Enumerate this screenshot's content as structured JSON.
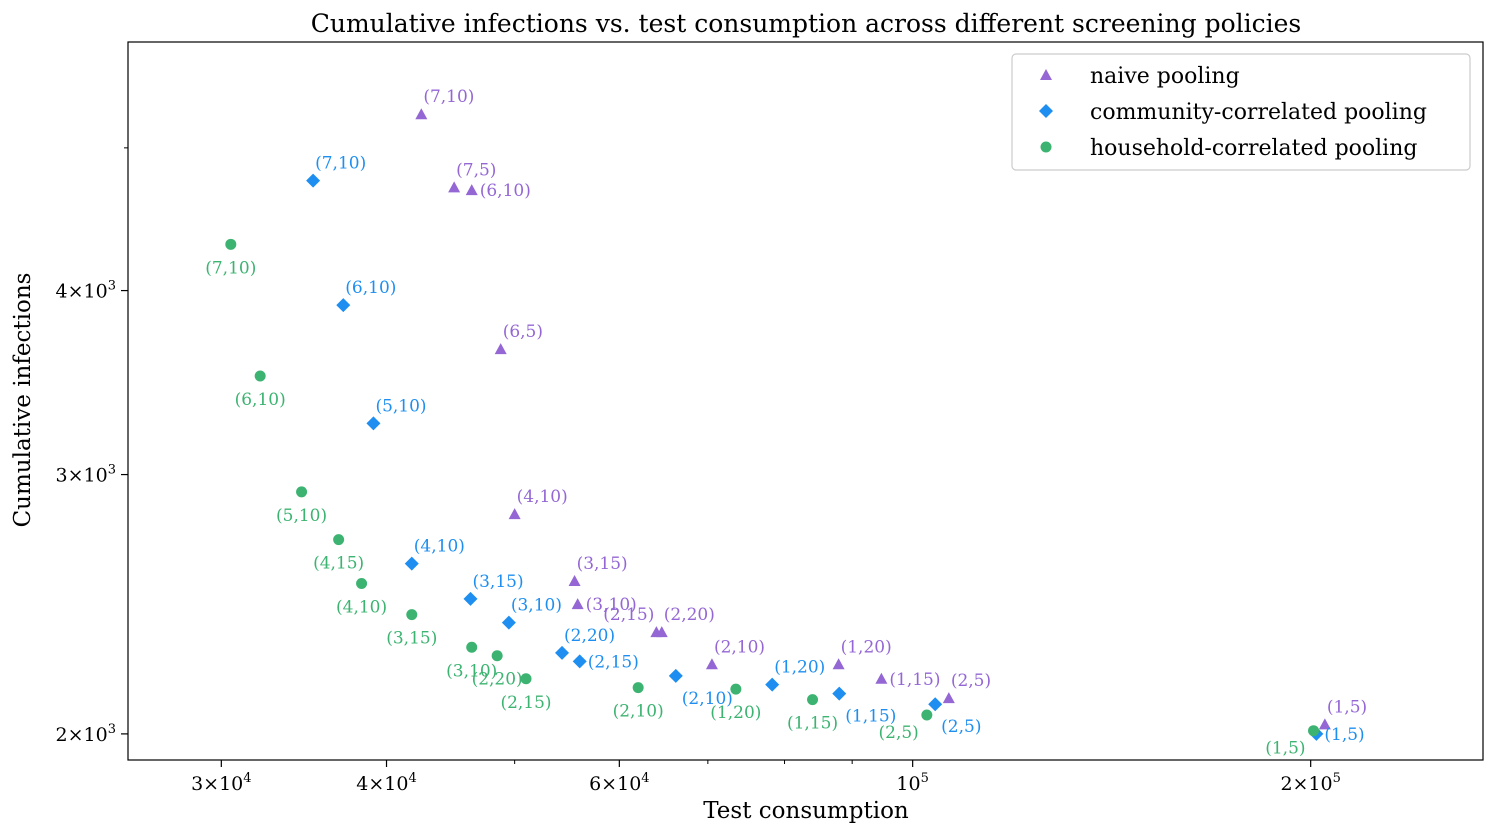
{
  "colors": {
    "naive": "#9467d4",
    "community": "#1e8ff0",
    "household": "#3cb371"
  },
  "chart_data": {
    "type": "scatter",
    "title": "Cumulative infections vs. test consumption across different screening policies",
    "xlabel": "Test consumption",
    "ylabel": "Cumulative infections",
    "xscale": "log",
    "yscale": "log",
    "xlim": [
      25500,
      270000
    ],
    "ylim": [
      1920,
      5900
    ],
    "grid": false,
    "legend_position": "top-right",
    "x_ticks": [
      {
        "value": 30000,
        "mant": "3",
        "times": "×10",
        "exp": "4"
      },
      {
        "value": 40000,
        "mant": "4",
        "times": "×10",
        "exp": "4"
      },
      {
        "value": 60000,
        "mant": "6",
        "times": "×10",
        "exp": "4"
      },
      {
        "value": 100000,
        "mant": "",
        "times": "10",
        "exp": "5"
      },
      {
        "value": 200000,
        "mant": "2",
        "times": "×10",
        "exp": "5"
      }
    ],
    "x_minor_ticks": [
      50000,
      70000,
      80000,
      90000
    ],
    "y_ticks": [
      {
        "value": 2000,
        "mant": "2",
        "times": "×10",
        "exp": "3"
      },
      {
        "value": 3000,
        "mant": "3",
        "times": "×10",
        "exp": "3"
      },
      {
        "value": 4000,
        "mant": "4",
        "times": "×10",
        "exp": "3"
      }
    ],
    "y_minor_ticks": [
      5000
    ],
    "series": [
      {
        "key": "naive",
        "name": "naive pooling",
        "marker": "triangle",
        "points": [
          {
            "x": 42500,
            "y": 5270,
            "label": "(7,10)",
            "pos": "above-right"
          },
          {
            "x": 45000,
            "y": 4700,
            "label": "(7,5)",
            "pos": "above-right"
          },
          {
            "x": 46400,
            "y": 4680,
            "label": "(6,10)",
            "pos": "right"
          },
          {
            "x": 48800,
            "y": 3650,
            "label": "(6,5)",
            "pos": "above-right"
          },
          {
            "x": 50000,
            "y": 2820,
            "label": "(4,10)",
            "pos": "above-right"
          },
          {
            "x": 55500,
            "y": 2540,
            "label": "(3,15)",
            "pos": "above-right"
          },
          {
            "x": 55800,
            "y": 2450,
            "label": "(3,10)",
            "pos": "right"
          },
          {
            "x": 64000,
            "y": 2345,
            "label": "(2,15)",
            "pos": "above-left"
          },
          {
            "x": 64600,
            "y": 2345,
            "label": "(2,20)",
            "pos": "above-right"
          },
          {
            "x": 70500,
            "y": 2230,
            "label": "(2,10)",
            "pos": "above-right"
          },
          {
            "x": 87900,
            "y": 2230,
            "label": "(1,20)",
            "pos": "above-right"
          },
          {
            "x": 94700,
            "y": 2180,
            "label": "(1,15)",
            "pos": "right"
          },
          {
            "x": 106500,
            "y": 2115,
            "label": "(2,5)",
            "pos": "above-right"
          },
          {
            "x": 205000,
            "y": 2030,
            "label": "(1,5)",
            "pos": "above-right"
          }
        ]
      },
      {
        "key": "community",
        "name": "community-correlated pooling",
        "marker": "diamond",
        "points": [
          {
            "x": 35200,
            "y": 4750,
            "label": "(7,10)",
            "pos": "above-right"
          },
          {
            "x": 37100,
            "y": 3910,
            "label": "(6,10)",
            "pos": "above-right"
          },
          {
            "x": 39100,
            "y": 3250,
            "label": "(5,10)",
            "pos": "above-right"
          },
          {
            "x": 41800,
            "y": 2610,
            "label": "(4,10)",
            "pos": "above-right"
          },
          {
            "x": 46300,
            "y": 2470,
            "label": "(3,15)",
            "pos": "above-right"
          },
          {
            "x": 49500,
            "y": 2380,
            "label": "(3,10)",
            "pos": "above-right"
          },
          {
            "x": 54300,
            "y": 2270,
            "label": "(2,20)",
            "pos": "above-right"
          },
          {
            "x": 56000,
            "y": 2240,
            "label": "(2,15)",
            "pos": "right"
          },
          {
            "x": 66200,
            "y": 2190,
            "label": "(2,10)",
            "pos": "below-right"
          },
          {
            "x": 78300,
            "y": 2160,
            "label": "(1,20)",
            "pos": "above-right"
          },
          {
            "x": 88000,
            "y": 2130,
            "label": "(1,15)",
            "pos": "below-right"
          },
          {
            "x": 104000,
            "y": 2095,
            "label": "(2,5)",
            "pos": "below-right"
          },
          {
            "x": 202000,
            "y": 2000,
            "label": "(1,5)",
            "pos": "right"
          }
        ]
      },
      {
        "key": "household",
        "name": "household-correlated pooling",
        "marker": "circle",
        "points": [
          {
            "x": 30500,
            "y": 4300,
            "label": "(7,10)",
            "pos": "below"
          },
          {
            "x": 32100,
            "y": 3500,
            "label": "(6,10)",
            "pos": "below"
          },
          {
            "x": 34500,
            "y": 2920,
            "label": "(5,10)",
            "pos": "below"
          },
          {
            "x": 36800,
            "y": 2710,
            "label": "(4,15)",
            "pos": "below"
          },
          {
            "x": 38300,
            "y": 2530,
            "label": "(4,10)",
            "pos": "below"
          },
          {
            "x": 41800,
            "y": 2410,
            "label": "(3,15)",
            "pos": "below"
          },
          {
            "x": 46400,
            "y": 2290,
            "label": "(3,10)",
            "pos": "below"
          },
          {
            "x": 48500,
            "y": 2260,
            "label": "(2,20)",
            "pos": "below"
          },
          {
            "x": 51000,
            "y": 2180,
            "label": "(2,15)",
            "pos": "below"
          },
          {
            "x": 62000,
            "y": 2150,
            "label": "(2,10)",
            "pos": "below"
          },
          {
            "x": 73500,
            "y": 2145,
            "label": "(1,20)",
            "pos": "below"
          },
          {
            "x": 84000,
            "y": 2110,
            "label": "(1,15)",
            "pos": "below"
          },
          {
            "x": 102500,
            "y": 2060,
            "label": "(2,5)",
            "pos": "below-left"
          },
          {
            "x": 201000,
            "y": 2010,
            "label": "(1,5)",
            "pos": "below-left"
          }
        ]
      }
    ]
  }
}
